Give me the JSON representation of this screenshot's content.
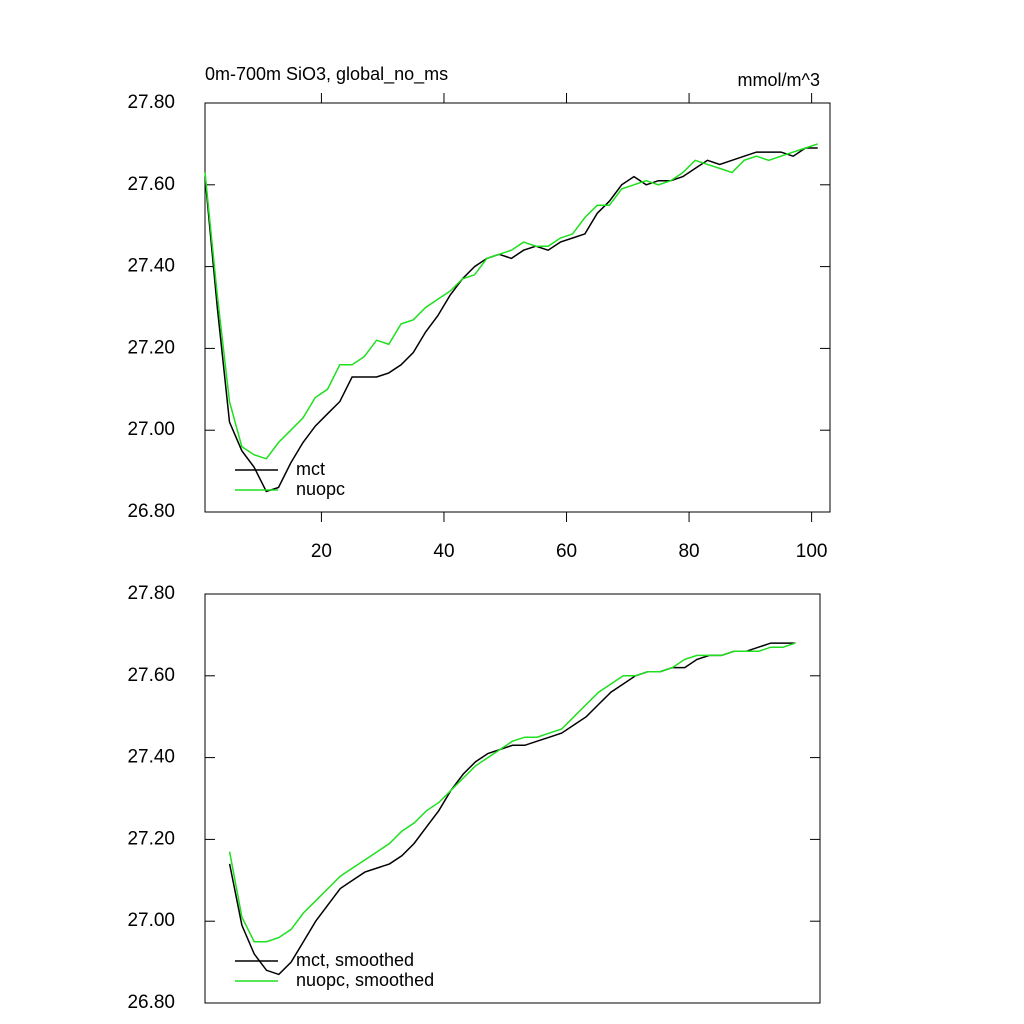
{
  "chart_data": [
    {
      "type": "line",
      "title": "0m-700m SiO3, global_no_ms",
      "unit_label": "mmol/m^3",
      "x": [
        1,
        3,
        5,
        7,
        9,
        11,
        13,
        15,
        17,
        19,
        21,
        23,
        25,
        27,
        29,
        31,
        33,
        35,
        37,
        39,
        41,
        43,
        45,
        47,
        49,
        51,
        53,
        55,
        57,
        59,
        61,
        63,
        65,
        67,
        69,
        71,
        73,
        75,
        77,
        79,
        81,
        83,
        85,
        87,
        89,
        91,
        93,
        95,
        97,
        99,
        101
      ],
      "series": [
        {
          "name": "mct",
          "color": "#000000",
          "values": [
            27.62,
            27.3,
            27.02,
            26.95,
            26.91,
            26.85,
            26.86,
            26.92,
            26.97,
            27.01,
            27.04,
            27.07,
            27.13,
            27.13,
            27.13,
            27.14,
            27.16,
            27.19,
            27.24,
            27.28,
            27.33,
            27.37,
            27.4,
            27.42,
            27.43,
            27.42,
            27.44,
            27.45,
            27.44,
            27.46,
            27.47,
            27.48,
            27.53,
            27.56,
            27.6,
            27.62,
            27.6,
            27.61,
            27.61,
            27.62,
            27.64,
            27.66,
            27.65,
            27.66,
            27.67,
            27.68,
            27.68,
            27.68,
            27.67,
            27.69,
            27.69
          ]
        },
        {
          "name": "nuopc",
          "color": "#1ee01e",
          "values": [
            27.63,
            27.33,
            27.07,
            26.96,
            26.94,
            26.93,
            26.97,
            27.0,
            27.03,
            27.08,
            27.1,
            27.16,
            27.16,
            27.18,
            27.22,
            27.21,
            27.26,
            27.27,
            27.3,
            27.32,
            27.34,
            27.37,
            27.38,
            27.42,
            27.43,
            27.44,
            27.46,
            27.45,
            27.45,
            27.47,
            27.48,
            27.52,
            27.55,
            27.55,
            27.59,
            27.6,
            27.61,
            27.6,
            27.61,
            27.63,
            27.66,
            27.65,
            27.64,
            27.63,
            27.66,
            27.67,
            27.66,
            27.67,
            27.68,
            27.69,
            27.7
          ]
        }
      ],
      "xlim": [
        1,
        103
      ],
      "ylim": [
        26.8,
        27.8
      ],
      "xticks": [
        20,
        40,
        60,
        80,
        100
      ],
      "yticks": [
        {
          "value": 26.8,
          "label": "26.80"
        },
        {
          "value": 27.0,
          "label": "27.00"
        },
        {
          "value": 27.2,
          "label": "27.20"
        },
        {
          "value": 27.4,
          "label": "27.40"
        },
        {
          "value": 27.6,
          "label": "27.60"
        },
        {
          "value": 27.8,
          "label": "27.80"
        }
      ],
      "legend": "lower left"
    },
    {
      "type": "line",
      "x": [
        5,
        7,
        9,
        11,
        13,
        15,
        17,
        19,
        21,
        23,
        25,
        27,
        29,
        31,
        33,
        35,
        37,
        39,
        41,
        43,
        45,
        47,
        49,
        51,
        53,
        55,
        57,
        59,
        61,
        63,
        65,
        67,
        69,
        71,
        73,
        75,
        77,
        79,
        81,
        83,
        85,
        87,
        89,
        91,
        93,
        95,
        97
      ],
      "series": [
        {
          "name": "mct, smoothed",
          "color": "#000000",
          "values": [
            27.14,
            26.99,
            26.92,
            26.88,
            26.87,
            26.9,
            26.95,
            27.0,
            27.04,
            27.08,
            27.1,
            27.12,
            27.13,
            27.14,
            27.16,
            27.19,
            27.23,
            27.27,
            27.32,
            27.36,
            27.39,
            27.41,
            27.42,
            27.43,
            27.43,
            27.44,
            27.45,
            27.46,
            27.48,
            27.5,
            27.53,
            27.56,
            27.58,
            27.6,
            27.61,
            27.61,
            27.62,
            27.62,
            27.64,
            27.65,
            27.65,
            27.66,
            27.66,
            27.67,
            27.68,
            27.68,
            27.68
          ]
        },
        {
          "name": "nuopc, smoothed",
          "color": "#1ee01e",
          "values": [
            27.17,
            27.01,
            26.95,
            26.95,
            26.96,
            26.98,
            27.02,
            27.05,
            27.08,
            27.11,
            27.13,
            27.15,
            27.17,
            27.19,
            27.22,
            27.24,
            27.27,
            27.29,
            27.32,
            27.35,
            27.38,
            27.4,
            27.42,
            27.44,
            27.45,
            27.45,
            27.46,
            27.47,
            27.5,
            27.53,
            27.56,
            27.58,
            27.6,
            27.6,
            27.61,
            27.61,
            27.62,
            27.64,
            27.65,
            27.65,
            27.65,
            27.66,
            27.66,
            27.66,
            27.67,
            27.67,
            27.68
          ]
        }
      ],
      "xlim": [
        1,
        101
      ],
      "ylim": [
        26.8,
        27.8
      ],
      "yticks": [
        {
          "value": 26.8,
          "label": "26.80"
        },
        {
          "value": 27.0,
          "label": "27.00"
        },
        {
          "value": 27.2,
          "label": "27.20"
        },
        {
          "value": 27.4,
          "label": "27.40"
        },
        {
          "value": 27.6,
          "label": "27.60"
        },
        {
          "value": 27.8,
          "label": "27.80"
        }
      ],
      "legend": "lower left"
    }
  ]
}
